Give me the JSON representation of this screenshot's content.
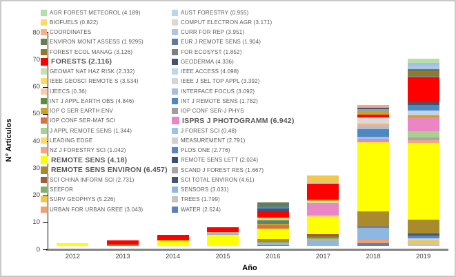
{
  "axis": {
    "ylabel": "N° Artículos",
    "xlabel": "Año"
  },
  "chart_data": {
    "type": "bar",
    "stacked": true,
    "title": "",
    "xlabel": "Año",
    "ylabel": "N° Artículos",
    "ylim": [
      0,
      80
    ],
    "yticks": [
      0,
      10,
      20,
      30,
      40,
      50,
      60,
      70,
      80
    ],
    "grid": false,
    "legend_position": "top-inside-two-columns",
    "categories": [
      "2012",
      "2013",
      "2014",
      "2015",
      "2016",
      "2017",
      "2018",
      "2019"
    ],
    "totals": [
      1,
      2,
      4,
      7,
      16,
      26,
      52,
      69
    ],
    "legend_left": [
      {
        "name": "AGR FOREST METEOROL",
        "label": "AGR FOREST METEOROL (4.189)",
        "color": "#b7dea8",
        "bold": false
      },
      {
        "name": "BIOFUELS",
        "label": "BIOFUELS (0.822)",
        "color": "#ffd966",
        "bold": false
      },
      {
        "name": "COORDINATES",
        "label": "COORDINATES",
        "color": "#f4b183",
        "bold": false
      },
      {
        "name": "ENVIRON MONIT ASSESS",
        "label": "ENVIRON MONIT ASSESS (1.9295)",
        "color": "#667d5a",
        "bold": false
      },
      {
        "name": "FOREST ECOL MANAG",
        "label": "FOREST ECOL MANAG (3.126)",
        "color": "#94782a",
        "bold": false
      },
      {
        "name": "FORESTS",
        "label": "FORESTS (2.116)",
        "color": "#ff0000",
        "bold": true
      },
      {
        "name": "GEOMAT NAT HAZ RISK",
        "label": "GEOMAT NAT HAZ RISK (2.332)",
        "color": "#c6e0b4",
        "bold": false
      },
      {
        "name": "IEEE GEOSCI REMOTE S",
        "label": "IEEE GEOSCI REMOTE S (3.534)",
        "color": "#ffd966",
        "bold": false
      },
      {
        "name": "IJEECS",
        "label": "IJEECS (0.36)",
        "color": "#f8cbad",
        "bold": false
      },
      {
        "name": "INT J APPL EARTH OBS",
        "label": "INT J APPL EARTH OBS (4.846)",
        "color": "#5f8a46",
        "bold": false
      },
      {
        "name": "IOP C SER EARTH ENV",
        "label": "IOP C SER EARTH ENV",
        "color": "#c9a227",
        "bold": false
      },
      {
        "name": "IOP CONF SER-MAT SCI",
        "label": "IOP CONF SER-MAT SCI",
        "color": "#dd7043",
        "bold": false
      },
      {
        "name": "J APPL REMOTE SENS",
        "label": "J APPL REMOTE SENS (1.344)",
        "color": "#a9d18e",
        "bold": false
      },
      {
        "name": "LEADING EDGE",
        "label": "LEADING EDGE",
        "color": "#ffd966",
        "bold": false
      },
      {
        "name": "NZ J FORESTRY SCI",
        "label": "NZ J FORESTRY SCI (1.042)",
        "color": "#f4a583",
        "bold": false
      },
      {
        "name": "REMOTE SENS",
        "label": "REMOTE SENS (4.18)",
        "color": "#ffff00",
        "bold": true
      },
      {
        "name": "REMOTE SENS ENVIRON",
        "label": "REMOTE SENS ENVIRON (6.457)",
        "color": "#a98b2d",
        "bold": true
      },
      {
        "name": "SCI CHINA INFORM SCI",
        "label": "SCI CHINA INFORM SCI (2.731)",
        "color": "#a15c3e",
        "bold": false
      },
      {
        "name": "SEEFOR",
        "label": "SEEFOR",
        "color": "#83b16c",
        "bold": false
      },
      {
        "name": "SURV GEOPHYS",
        "label": "SURV GEOPHYS (5.226)",
        "color": "#f2c84b",
        "bold": false
      },
      {
        "name": "URBAN FOR URBAN GREE",
        "label": "URBAN FOR URBAN GREE (3.043)",
        "color": "#f0a173",
        "bold": false
      }
    ],
    "legend_right": [
      {
        "name": "AUST FORESTRY",
        "label": "AUST FORESTRY (0.955)",
        "color": "#b9d5ef",
        "bold": false
      },
      {
        "name": "COMPUT ELECTRON AGR",
        "label": "COMPUT ELECTRON AGR (3.171)",
        "color": "#d9d9d9",
        "bold": false
      },
      {
        "name": "CURR FOR REP",
        "label": "CURR FOR REP (3.951)",
        "color": "#aec4e8",
        "bold": false
      },
      {
        "name": "EUR J REMOTE SENS",
        "label": "EUR J REMOTE SENS (1.904)",
        "color": "#5e7c99",
        "bold": false
      },
      {
        "name": "FOR ECOSYST",
        "label": "FOR ECOSYST (1.852)",
        "color": "#7f7f7f",
        "bold": false
      },
      {
        "name": "GEODERMA",
        "label": "GEODERMA (4.336)",
        "color": "#44546a",
        "bold": false
      },
      {
        "name": "IEEE ACCESS",
        "label": "IEEE ACCESS (4.098)",
        "color": "#bdd7ee",
        "bold": false
      },
      {
        "name": "IEEE J SEL TOP APPL",
        "label": "IEEE J SEL TOP APPL (3.392)",
        "color": "#d6d6d6",
        "bold": false
      },
      {
        "name": "INTERFACE FOCUS",
        "label": "INTERFACE FOCUS (3.092)",
        "color": "#a9bede",
        "bold": false
      },
      {
        "name": "INT J REMOTE SENS",
        "label": "INT J REMOTE SENS (1.782)",
        "color": "#4f87c0",
        "bold": false
      },
      {
        "name": "IOP CONF SER-J PHYS",
        "label": "IOP CONF SER-J PHYS",
        "color": "#9e9e9e",
        "bold": false
      },
      {
        "name": "ISPRS J PHOTOGRAMM",
        "label": "ISPRS J PHOTOGRAMM (6.942)",
        "color": "#ea86c4",
        "bold": true
      },
      {
        "name": "J FOREST SCI",
        "label": "J FOREST SCI (0.48)",
        "color": "#9dc3e6",
        "bold": false
      },
      {
        "name": "MEASUREMENT",
        "label": "MEASUREMENT (2.791)",
        "color": "#cfcfd4",
        "bold": false
      },
      {
        "name": "PLOS ONE",
        "label": "PLOS ONE (2.776)",
        "color": "#5b84c4",
        "bold": false
      },
      {
        "name": "REMOTE SENS LETT",
        "label": "REMOTE SENS LETT (2.024)",
        "color": "#33547e",
        "bold": false
      },
      {
        "name": "SCAND J FOREST RES",
        "label": "SCAND J FOREST RES (1.667)",
        "color": "#a6a6a6",
        "bold": false
      },
      {
        "name": "SCI TOTAL ENVIRON",
        "label": "SCI TOTAL ENVIRON (4.61)",
        "color": "#3f5876",
        "bold": false
      },
      {
        "name": "SENSORS",
        "label": "SENSORS (3.031)",
        "color": "#8fb8e0",
        "bold": false
      },
      {
        "name": "TREES",
        "label": "TREES (1.799)",
        "color": "#c4c4c4",
        "bold": false
      },
      {
        "name": "WATER",
        "label": "WATER (2.524)",
        "color": "#5c7fbe",
        "bold": false
      }
    ],
    "bars": [
      {
        "year": "2012",
        "segments": [
          {
            "name": "REMOTE SENS",
            "value": 1.0
          }
        ]
      },
      {
        "year": "2013",
        "segments": [
          {
            "name": "REMOTE SENS ENVIRON",
            "value": 0.5
          },
          {
            "name": "FORESTS",
            "value": 1.5
          }
        ]
      },
      {
        "year": "2014",
        "segments": [
          {
            "name": "REMOTE SENS",
            "value": 2.0
          },
          {
            "name": "FORESTS",
            "value": 2.0
          }
        ]
      },
      {
        "year": "2015",
        "segments": [
          {
            "name": "REMOTE SENS",
            "value": 4.0
          },
          {
            "name": "SENSORS",
            "value": 0.5
          },
          {
            "name": "NZ J FORESTRY SCI",
            "value": 0.7
          },
          {
            "name": "FORESTS",
            "value": 1.8
          }
        ]
      },
      {
        "year": "2016",
        "segments": [
          {
            "name": "WATER",
            "value": 0.3
          },
          {
            "name": "SENSORS",
            "value": 1.0
          },
          {
            "name": "REMOTE SENS ENVIRON",
            "value": 1.2
          },
          {
            "name": "REMOTE SENS",
            "value": 4.0
          },
          {
            "name": "IOP CONF SER-MAT SCI",
            "value": 1.2
          },
          {
            "name": "IOP C SER EARTH ENV",
            "value": 0.5
          },
          {
            "name": "EUR J REMOTE SENS",
            "value": 0.6
          },
          {
            "name": "INT J APPL EARTH OBS",
            "value": 0.6
          },
          {
            "name": "AUST FORESTRY",
            "value": 0.5
          },
          {
            "name": "LEADING EDGE",
            "value": 0.5
          },
          {
            "name": "FORESTS",
            "value": 2.4
          },
          {
            "name": "GEODERMA",
            "value": 1.0
          },
          {
            "name": "INT J REMOTE SENS",
            "value": 0.7
          },
          {
            "name": "ENVIRON MONIT ASSESS",
            "value": 1.5
          }
        ]
      },
      {
        "year": "2017",
        "segments": [
          {
            "name": "SENSORS",
            "value": 2.0
          },
          {
            "name": "URBAN FOR URBAN GREE",
            "value": 0.6
          },
          {
            "name": "SEEFOR",
            "value": 0.5
          },
          {
            "name": "FOREST ECOL MANAG",
            "value": 0.5
          },
          {
            "name": "SCI CHINA INFORM SCI",
            "value": 0.7
          },
          {
            "name": "REMOTE SENS",
            "value": 6.3
          },
          {
            "name": "BIOFUELS",
            "value": 0.7
          },
          {
            "name": "ISPRS J PHOTOGRAMM",
            "value": 4.6
          },
          {
            "name": "GEOMAT NAT HAZ RISK",
            "value": 0.6
          },
          {
            "name": "IOP C SER EARTH ENV",
            "value": 0.7
          },
          {
            "name": "FORESTS",
            "value": 5.7
          },
          {
            "name": "TREES",
            "value": 0.6
          },
          {
            "name": "SURV GEOPHYS",
            "value": 2.5
          }
        ]
      },
      {
        "year": "2018",
        "segments": [
          {
            "name": "WATER",
            "value": 1.0
          },
          {
            "name": "URBAN FOR URBAN GREE",
            "value": 1.2
          },
          {
            "name": "SENSORS",
            "value": 4.5
          },
          {
            "name": "FOR ECOSYST",
            "value": 0.8
          },
          {
            "name": "REMOTE SENS ENVIRON",
            "value": 5.2
          },
          {
            "name": "REMOTE SENS",
            "value": 25.5
          },
          {
            "name": "ISPRS J PHOTOGRAMM",
            "value": 1.3
          },
          {
            "name": "J FOREST SCI",
            "value": 0.8
          },
          {
            "name": "INT J REMOTE SENS",
            "value": 2.7
          },
          {
            "name": "INTERFACE FOCUS",
            "value": 1.1
          },
          {
            "name": "COORDINATES",
            "value": 1.0
          },
          {
            "name": "COMPUT ELECTRON AGR",
            "value": 2.2
          },
          {
            "name": "FORESTS",
            "value": 1.2
          },
          {
            "name": "IOP C SER EARTH ENV",
            "value": 1.1
          },
          {
            "name": "IOP CONF SER-J PHYS",
            "value": 0.8
          },
          {
            "name": "SCI TOTAL ENVIRON",
            "value": 0.5
          },
          {
            "name": "NZ J FORESTRY SCI",
            "value": 1.1
          }
        ]
      },
      {
        "year": "2019",
        "segments": [
          {
            "name": "TREES",
            "value": 0.7
          },
          {
            "name": "SURV GEOPHYS",
            "value": 1.4
          },
          {
            "name": "AUST FORESTRY",
            "value": 0.8
          },
          {
            "name": "PLOS ONE",
            "value": 1.0
          },
          {
            "name": "SCI TOTAL ENVIRON",
            "value": 0.8
          },
          {
            "name": "REMOTE SENS ENVIRON",
            "value": 5.1
          },
          {
            "name": "REMOTE SENS",
            "value": 28.2
          },
          {
            "name": "NZ J FORESTRY SCI",
            "value": 1.1
          },
          {
            "name": "SCAND J FOREST RES",
            "value": 1.0
          },
          {
            "name": "J APPL REMOTE SENS",
            "value": 2.1
          },
          {
            "name": "ISPRS J PHOTOGRAMM",
            "value": 5.1
          },
          {
            "name": "IOP C SER EARTH ENV",
            "value": 1.0
          },
          {
            "name": "MEASUREMENT",
            "value": 0.6
          },
          {
            "name": "IEEE ACCESS",
            "value": 1.1
          },
          {
            "name": "INT J REMOTE SENS",
            "value": 1.9
          },
          {
            "name": "GEODERMA",
            "value": 1.2
          },
          {
            "name": "FORESTS",
            "value": 9.0
          },
          {
            "name": "FOR ECOSYST",
            "value": 0.6
          },
          {
            "name": "FOREST ECOL MANAG",
            "value": 1.7
          },
          {
            "name": "ENVIRON MONIT ASSESS",
            "value": 0.9
          },
          {
            "name": "CURR FOR REP",
            "value": 1.3
          },
          {
            "name": "J FOREST SCI",
            "value": 1.0
          },
          {
            "name": "AGR FOREST METEOROL",
            "value": 1.4
          }
        ]
      }
    ]
  }
}
